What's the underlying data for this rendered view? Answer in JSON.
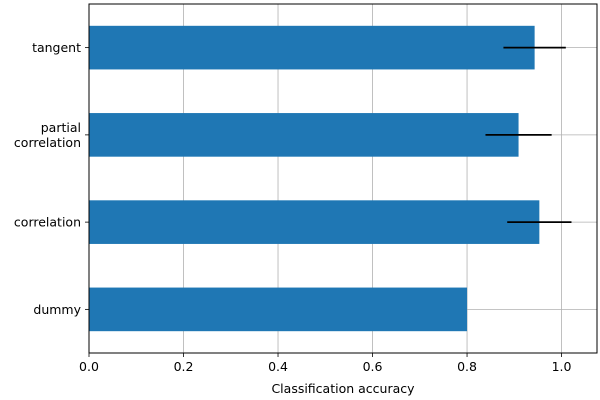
{
  "chart_data": {
    "type": "bar",
    "orientation": "horizontal",
    "categories": [
      "dummy",
      "correlation",
      "partial\ncorrelation",
      "tangent"
    ],
    "values": [
      0.8,
      0.953,
      0.909,
      0.943
    ],
    "errors": [
      0.0,
      0.068,
      0.07,
      0.066
    ],
    "xlabel": "Classification accuracy",
    "ylabel": "",
    "title": "",
    "xlim": [
      0.0,
      1.075
    ],
    "xticks": [
      0.0,
      0.2,
      0.4,
      0.6,
      0.8,
      1.0
    ],
    "xtick_labels": [
      "0.0",
      "0.2",
      "0.4",
      "0.6",
      "0.8",
      "1.0"
    ],
    "grid": true,
    "bar_color": "#1f77b4",
    "error_color": "#000000"
  }
}
